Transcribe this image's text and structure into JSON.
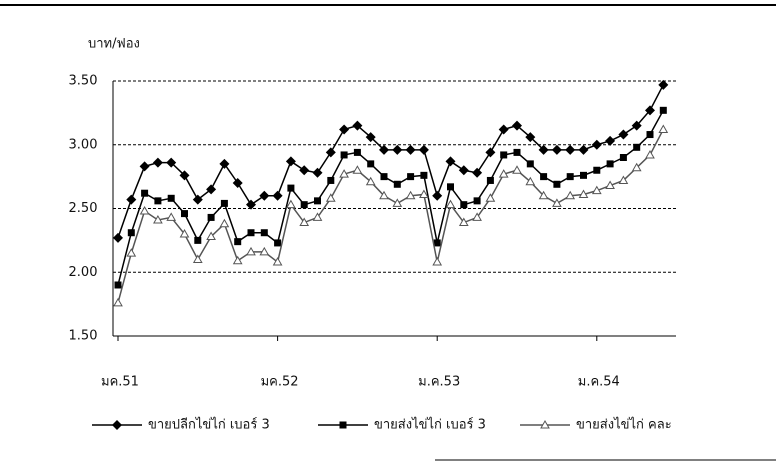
{
  "chart_data": {
    "type": "line",
    "y_label": "บาท/ฟอง",
    "categories": [
      "มค.51",
      null,
      null,
      null,
      null,
      null,
      null,
      null,
      null,
      null,
      null,
      null,
      "มค.52",
      null,
      null,
      null,
      null,
      null,
      null,
      null,
      null,
      null,
      null,
      null,
      "ม.ค.53",
      null,
      null,
      null,
      null,
      null,
      null,
      null,
      null,
      null,
      null,
      null,
      "ม.ค.54",
      null,
      null,
      null,
      null,
      null
    ],
    "series": [
      {
        "name": "ขายปลีกไข่ไก่ เบอร์ 3",
        "color": "#000000",
        "marker": "diamond",
        "values": [
          2.27,
          2.57,
          2.83,
          2.86,
          2.86,
          2.76,
          2.57,
          2.65,
          2.85,
          2.7,
          2.53,
          2.6,
          2.6,
          2.87,
          2.8,
          2.78,
          2.94,
          3.12,
          3.15,
          3.06,
          2.96,
          2.96,
          2.96,
          2.96,
          2.6,
          2.87,
          2.8,
          2.78,
          2.94,
          3.12,
          3.15,
          3.06,
          2.96,
          2.96,
          2.96,
          2.96,
          3.0,
          3.03,
          3.08,
          3.15,
          3.27,
          3.47
        ]
      },
      {
        "name": "ขายส่งไข่ไก่ เบอร์ 3",
        "color": "#000000",
        "marker": "square",
        "values": [
          1.9,
          2.31,
          2.62,
          2.56,
          2.58,
          2.46,
          2.25,
          2.43,
          2.54,
          2.24,
          2.31,
          2.31,
          2.23,
          2.66,
          2.53,
          2.56,
          2.72,
          2.92,
          2.94,
          2.85,
          2.75,
          2.69,
          2.75,
          2.76,
          2.23,
          2.67,
          2.53,
          2.56,
          2.72,
          2.92,
          2.94,
          2.85,
          2.75,
          2.69,
          2.75,
          2.76,
          2.8,
          2.85,
          2.9,
          2.98,
          3.08,
          3.27
        ]
      },
      {
        "name": "ขายส่งไข่ไก่ คละ",
        "color": "#555555",
        "marker": "triangle",
        "values": [
          1.76,
          2.15,
          2.48,
          2.41,
          2.43,
          2.3,
          2.1,
          2.28,
          2.38,
          2.09,
          2.16,
          2.16,
          2.08,
          2.53,
          2.39,
          2.43,
          2.58,
          2.77,
          2.8,
          2.71,
          2.6,
          2.54,
          2.6,
          2.61,
          2.08,
          2.53,
          2.39,
          2.43,
          2.58,
          2.77,
          2.8,
          2.71,
          2.6,
          2.54,
          2.6,
          2.61,
          2.64,
          2.68,
          2.72,
          2.82,
          2.92,
          3.12
        ]
      }
    ],
    "ylim": [
      1.5,
      3.5
    ],
    "yticks": [
      {
        "value": 1.5,
        "label": "1.50"
      },
      {
        "value": 2,
        "label": "2.00"
      },
      {
        "value": 2.5,
        "label": "2.50"
      },
      {
        "value": 3,
        "label": "3.00"
      },
      {
        "value": 3.5,
        "label": "3.50"
      }
    ],
    "grid": true,
    "legend": "bottom"
  }
}
